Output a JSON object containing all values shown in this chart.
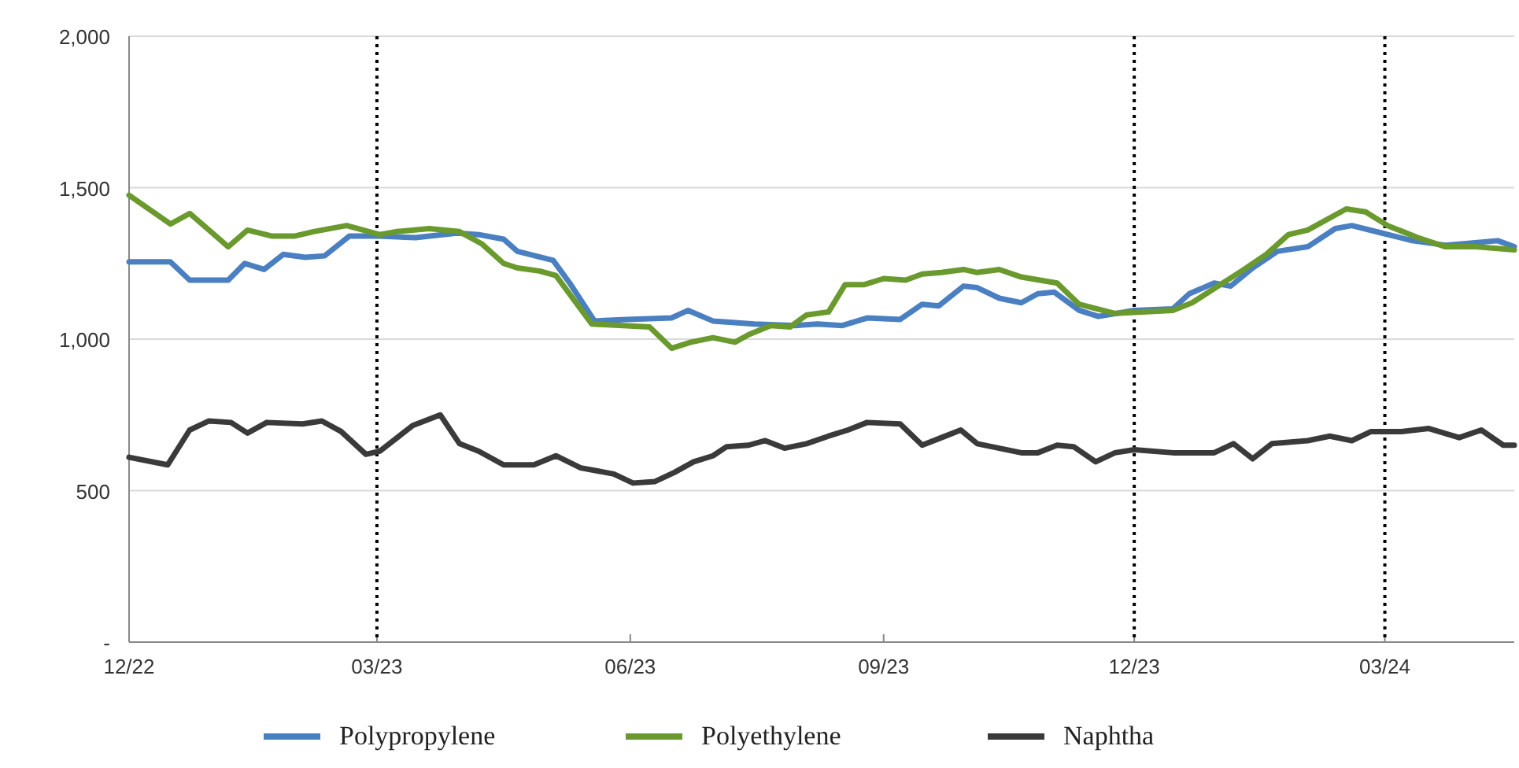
{
  "chart_data": {
    "type": "line",
    "legend": "bottom",
    "grid": "y",
    "line_style": "solid",
    "marker": "none",
    "xlim": [
      "2022-12-01",
      "2024-04-17"
    ],
    "xticks": [
      {
        "value": "2022-12-01",
        "label": "12/22"
      },
      {
        "value": "2023-03-01",
        "label": "03/23"
      },
      {
        "value": "2023-06-01",
        "label": "06/23"
      },
      {
        "value": "2023-09-01",
        "label": "09/23"
      },
      {
        "value": "2023-12-01",
        "label": "12/23"
      },
      {
        "value": "2024-03-01",
        "label": "03/24"
      }
    ],
    "ylim": [
      0,
      2000
    ],
    "yticks": [
      {
        "value": 0,
        "label": "-"
      },
      500,
      {
        "value": 1000,
        "label": "1,000"
      },
      {
        "value": 1500,
        "label": "1,500"
      },
      {
        "value": 2000,
        "label": "2,000"
      }
    ],
    "ref_lines": [
      {
        "axis": "x",
        "value": "2023-03-01",
        "color": "#000000",
        "line_style": "dotted"
      },
      {
        "axis": "x",
        "value": "2023-12-01",
        "color": "#000000",
        "line_style": "dotted"
      },
      {
        "axis": "x",
        "value": "2024-03-01",
        "color": "#000000",
        "line_style": "dotted"
      }
    ],
    "series": [
      {
        "name": "Polypropylene",
        "color": "#4a7fc1",
        "x": [
          "2022-12-01",
          "2022-12-16",
          "2022-12-23",
          "2023-01-06",
          "2023-01-12",
          "2023-01-19",
          "2023-01-26",
          "2023-02-03",
          "2023-02-10",
          "2023-02-19",
          "2023-03-02",
          "2023-03-15",
          "2023-03-30",
          "2023-04-07",
          "2023-04-16",
          "2023-04-21",
          "2023-05-04",
          "2023-05-10",
          "2023-05-19",
          "2023-05-31",
          "2023-06-16",
          "2023-06-22",
          "2023-07-01",
          "2023-07-16",
          "2023-07-31",
          "2023-08-08",
          "2023-08-17",
          "2023-08-26",
          "2023-09-07",
          "2023-09-15",
          "2023-09-21",
          "2023-09-30",
          "2023-10-05",
          "2023-10-13",
          "2023-10-21",
          "2023-10-27",
          "2023-11-02",
          "2023-11-11",
          "2023-11-18",
          "2023-12-01",
          "2023-12-15",
          "2023-12-21",
          "2023-12-30",
          "2024-01-05",
          "2024-01-13",
          "2024-01-22",
          "2024-02-02",
          "2024-02-12",
          "2024-02-18",
          "2024-02-29",
          "2024-03-11",
          "2024-03-23",
          "2024-04-11",
          "2024-04-17"
        ],
        "values": [
          1255,
          1255,
          1195,
          1195,
          1250,
          1230,
          1280,
          1270,
          1275,
          1340,
          1340,
          1335,
          1350,
          1345,
          1330,
          1290,
          1260,
          1185,
          1060,
          1065,
          1070,
          1095,
          1060,
          1050,
          1045,
          1050,
          1045,
          1070,
          1065,
          1115,
          1110,
          1175,
          1170,
          1135,
          1120,
          1150,
          1155,
          1095,
          1075,
          1095,
          1100,
          1150,
          1185,
          1175,
          1235,
          1290,
          1305,
          1365,
          1375,
          1350,
          1325,
          1310,
          1325,
          1305
        ]
      },
      {
        "name": "Polyethylene",
        "color": "#6a9a2e",
        "x": [
          "2022-12-01",
          "2022-12-16",
          "2022-12-23",
          "2023-01-06",
          "2023-01-13",
          "2023-01-22",
          "2023-01-30",
          "2023-02-06",
          "2023-02-18",
          "2023-03-02",
          "2023-03-08",
          "2023-03-20",
          "2023-03-31",
          "2023-04-08",
          "2023-04-16",
          "2023-04-21",
          "2023-04-29",
          "2023-05-05",
          "2023-05-18",
          "2023-06-08",
          "2023-06-16",
          "2023-06-23",
          "2023-07-01",
          "2023-07-09",
          "2023-07-14",
          "2023-07-22",
          "2023-07-29",
          "2023-08-04",
          "2023-08-12",
          "2023-08-18",
          "2023-08-25",
          "2023-09-01",
          "2023-09-09",
          "2023-09-15",
          "2023-09-22",
          "2023-09-30",
          "2023-10-05",
          "2023-10-13",
          "2023-10-21",
          "2023-11-03",
          "2023-11-11",
          "2023-11-24",
          "2023-12-15",
          "2023-12-22",
          "2024-01-09",
          "2024-01-18",
          "2024-01-26",
          "2024-02-02",
          "2024-02-16",
          "2024-02-23",
          "2024-03-02",
          "2024-03-13",
          "2024-03-23",
          "2024-04-03",
          "2024-04-17"
        ],
        "values": [
          1475,
          1380,
          1415,
          1305,
          1360,
          1340,
          1340,
          1355,
          1375,
          1345,
          1355,
          1365,
          1355,
          1315,
          1250,
          1235,
          1225,
          1210,
          1050,
          1040,
          970,
          990,
          1005,
          990,
          1015,
          1045,
          1040,
          1080,
          1090,
          1180,
          1180,
          1200,
          1195,
          1215,
          1220,
          1230,
          1220,
          1230,
          1205,
          1185,
          1115,
          1085,
          1095,
          1120,
          1225,
          1280,
          1345,
          1360,
          1430,
          1420,
          1375,
          1335,
          1305,
          1305,
          1295
        ]
      },
      {
        "name": "Naphtha",
        "color": "#3a3a3a",
        "x": [
          "2022-12-01",
          "2022-12-15",
          "2022-12-23",
          "2022-12-30",
          "2023-01-07",
          "2023-01-13",
          "2023-01-20",
          "2023-02-02",
          "2023-02-09",
          "2023-02-16",
          "2023-02-25",
          "2023-03-02",
          "2023-03-14",
          "2023-03-24",
          "2023-03-31",
          "2023-04-07",
          "2023-04-16",
          "2023-04-27",
          "2023-05-05",
          "2023-05-14",
          "2023-05-26",
          "2023-06-02",
          "2023-06-10",
          "2023-06-17",
          "2023-06-24",
          "2023-07-01",
          "2023-07-06",
          "2023-07-14",
          "2023-07-20",
          "2023-07-27",
          "2023-08-04",
          "2023-08-12",
          "2023-08-19",
          "2023-08-26",
          "2023-09-07",
          "2023-09-15",
          "2023-09-22",
          "2023-09-29",
          "2023-10-05",
          "2023-10-13",
          "2023-10-21",
          "2023-10-27",
          "2023-11-03",
          "2023-11-09",
          "2023-11-17",
          "2023-11-24",
          "2023-12-01",
          "2023-12-15",
          "2023-12-30",
          "2024-01-06",
          "2024-01-13",
          "2024-01-20",
          "2024-02-02",
          "2024-02-10",
          "2024-02-18",
          "2024-02-25",
          "2024-03-07",
          "2024-03-17",
          "2024-03-28",
          "2024-04-05",
          "2024-04-13",
          "2024-04-17"
        ],
        "values": [
          610,
          585,
          700,
          730,
          725,
          690,
          725,
          720,
          730,
          695,
          620,
          630,
          715,
          750,
          655,
          630,
          585,
          585,
          615,
          575,
          555,
          525,
          530,
          560,
          595,
          615,
          645,
          650,
          665,
          640,
          655,
          680,
          700,
          725,
          720,
          650,
          675,
          700,
          655,
          640,
          625,
          625,
          650,
          645,
          595,
          625,
          635,
          625,
          625,
          655,
          605,
          655,
          665,
          680,
          665,
          695,
          695,
          705,
          675,
          700,
          650,
          650
        ]
      }
    ]
  }
}
